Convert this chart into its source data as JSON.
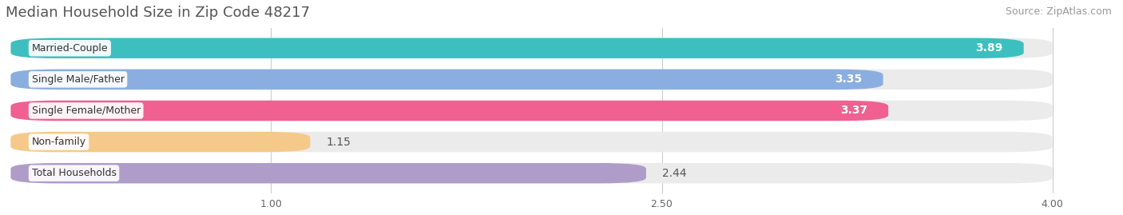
{
  "title": "Median Household Size in Zip Code 48217",
  "source": "Source: ZipAtlas.com",
  "categories": [
    "Married-Couple",
    "Single Male/Father",
    "Single Female/Mother",
    "Non-family",
    "Total Households"
  ],
  "values": [
    3.89,
    3.35,
    3.37,
    1.15,
    2.44
  ],
  "bar_colors": [
    "#3dbfbf",
    "#8aaee0",
    "#f06090",
    "#f5c98a",
    "#b09cc8"
  ],
  "value_badge_colors": [
    "#3dbfbf",
    "#8aaee0",
    "#f06090",
    null,
    null
  ],
  "label_colors": [
    "white",
    "white",
    "white",
    "#777777",
    "#777777"
  ],
  "xmin": 0.0,
  "xmax": 4.0,
  "xaxis_min": 1.0,
  "xaxis_max": 4.0,
  "xticks": [
    1.0,
    2.5,
    4.0
  ],
  "xtick_labels": [
    "1.00",
    "2.50",
    "4.00"
  ],
  "title_fontsize": 13,
  "source_fontsize": 9,
  "bar_label_fontsize": 10,
  "category_fontsize": 9,
  "background_color": "#ffffff",
  "bar_background_color": "#ebebeb",
  "bar_height": 0.65,
  "bar_gap": 0.35
}
